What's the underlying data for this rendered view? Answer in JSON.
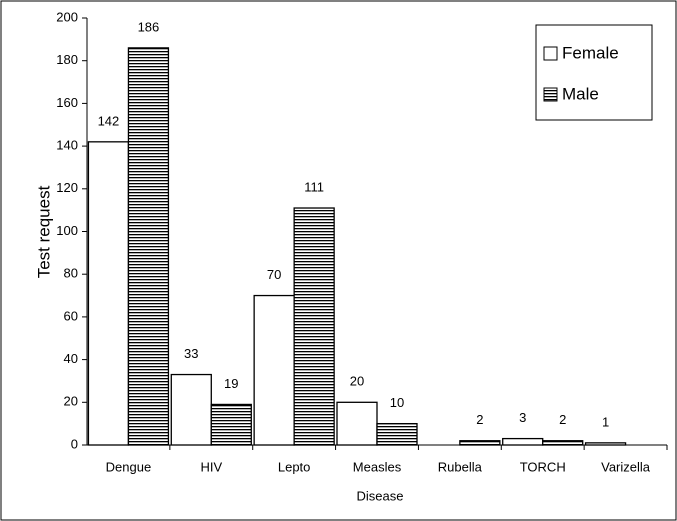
{
  "chart_data": {
    "type": "bar",
    "x_label": "Disease",
    "y_label": "Test request",
    "categories": [
      "Dengue",
      "HIV",
      "Lepto",
      "Measles",
      "Rubella",
      "TORCH",
      "Varizella"
    ],
    "series": [
      {
        "name": "Female",
        "color": "#ffffff",
        "values": [
          142,
          33,
          70,
          20,
          null,
          3,
          1
        ]
      },
      {
        "name": "Male",
        "color": "#000000",
        "values": [
          186,
          19,
          111,
          10,
          2,
          2,
          null
        ]
      }
    ],
    "ylim": [
      0,
      200
    ],
    "yticks": [
      0,
      20,
      40,
      60,
      80,
      100,
      120,
      140,
      160,
      180,
      200
    ],
    "legend": "top-right"
  }
}
